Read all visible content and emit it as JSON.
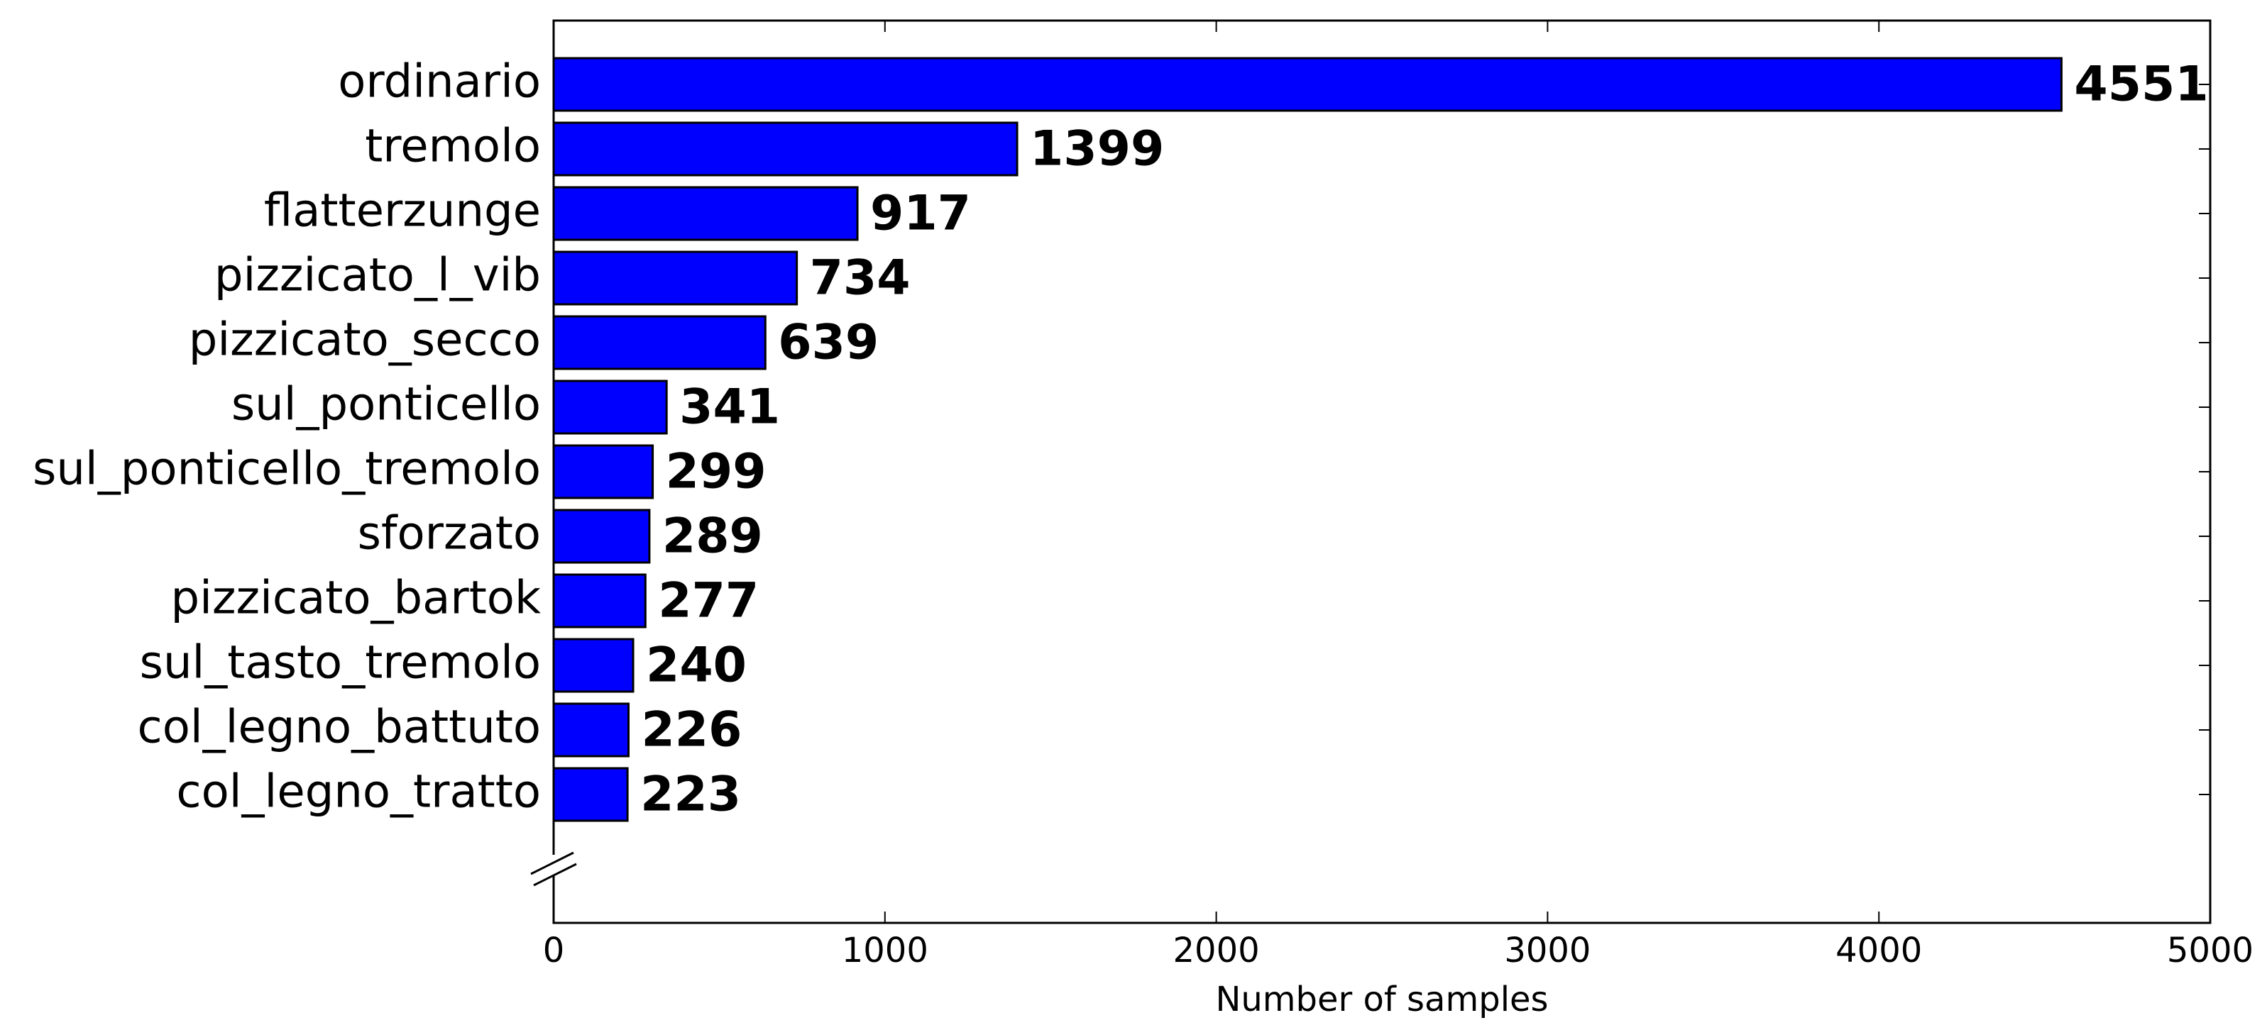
{
  "chart_data": {
    "type": "bar",
    "orientation": "horizontal",
    "xlabel": "Number of samples",
    "categories": [
      "ordinario",
      "tremolo",
      "flatterzunge",
      "pizzicato_l_vib",
      "pizzicato_secco",
      "sul_ponticello",
      "sul_ponticello_tremolo",
      "sforzato",
      "pizzicato_bartok",
      "sul_tasto_tremolo",
      "col_legno_battuto",
      "col_legno_tratto"
    ],
    "values": [
      4551,
      1399,
      917,
      734,
      639,
      341,
      299,
      289,
      277,
      240,
      226,
      223
    ],
    "color": "#0000ff",
    "xlim": [
      0,
      5000
    ],
    "xticks": [
      0,
      1000,
      2000,
      3000,
      4000,
      5000
    ],
    "grid": false
  }
}
